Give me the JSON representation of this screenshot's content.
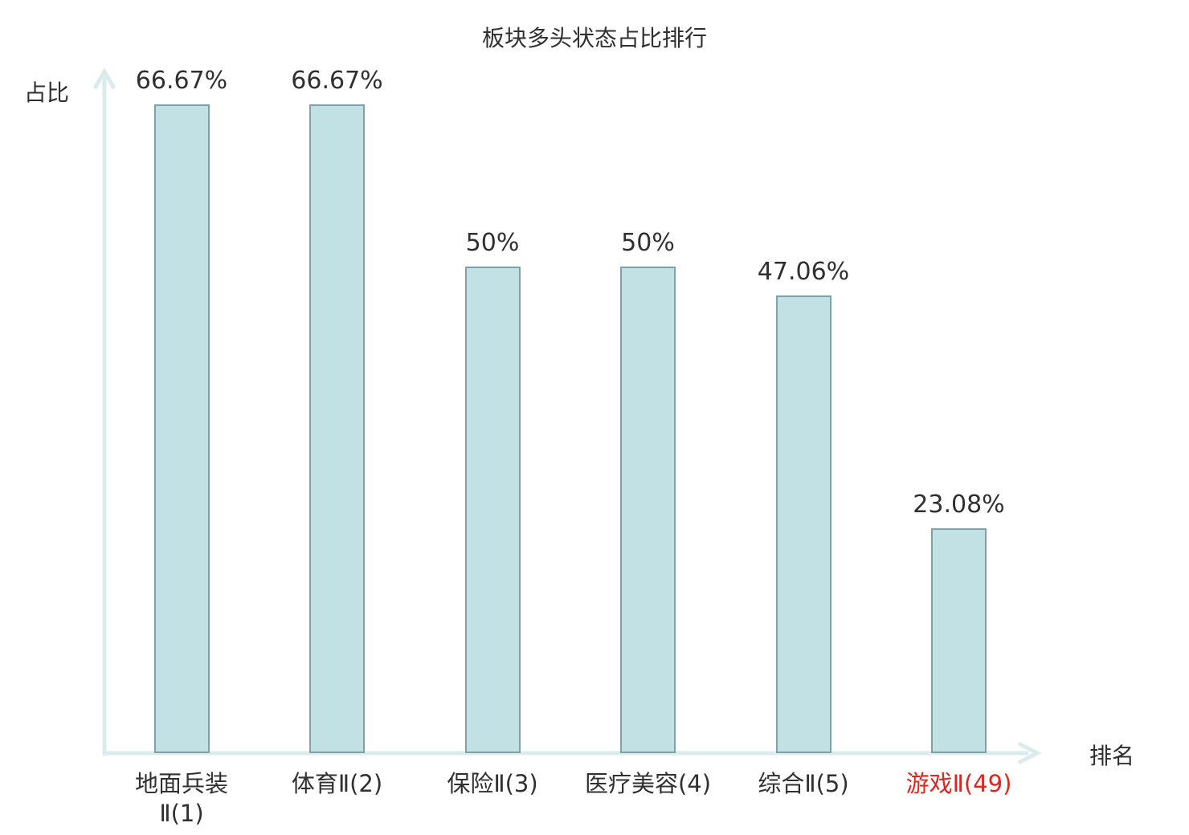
{
  "chart_data": {
    "type": "bar",
    "title": "板块多头状态占比排行",
    "ylabel": "占比",
    "xlabel": "排名",
    "categories": [
      "地面兵装\nⅡ(1)",
      "体育Ⅱ(2)",
      "保险Ⅱ(3)",
      "医疗美容(4)",
      "综合Ⅱ(5)",
      "游戏Ⅱ(49)"
    ],
    "values": [
      66.67,
      66.67,
      50,
      50,
      47.06,
      23.08
    ],
    "value_labels": [
      "66.67%",
      "66.67%",
      "50%",
      "50%",
      "47.06%",
      "23.08%"
    ],
    "category_label_colors": [
      "#303030",
      "#303030",
      "#303030",
      "#303030",
      "#303030",
      "#e02420"
    ],
    "ylim": [
      0,
      70
    ],
    "grid": false,
    "legend": false,
    "colors": {
      "bar_fill": "#c2e1e4",
      "bar_border": "#7fa1a7",
      "axis": "#d9eceb",
      "text": "#303030",
      "highlight": "#e02420",
      "background": "#ffffff"
    }
  }
}
